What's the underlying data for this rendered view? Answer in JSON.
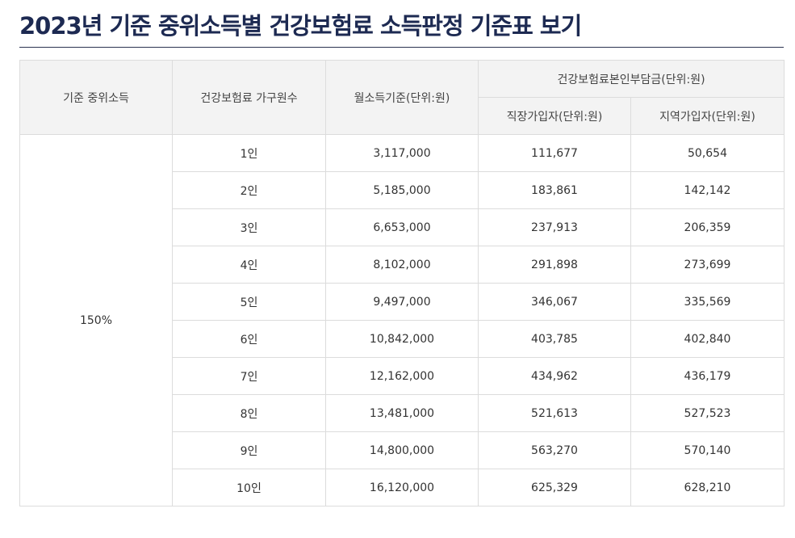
{
  "page": {
    "title": "2023년 기준 중위소득별 건강보험료 소득판정 기준표 보기"
  },
  "table": {
    "headers": {
      "median_income": "기준 중위소득",
      "household": "건강보험료 가구원수",
      "monthly_income": "월소득기준(단위:원)",
      "premium_group": "건강보험료본인부담금(단위:원)",
      "employee": "직장가입자(단위:원)",
      "regional": "지역가입자(단위:원)"
    },
    "ratio": "150%",
    "rows": [
      {
        "household": "1인",
        "monthly_income": "3,117,000",
        "employee": "111,677",
        "regional": "50,654"
      },
      {
        "household": "2인",
        "monthly_income": "5,185,000",
        "employee": "183,861",
        "regional": "142,142"
      },
      {
        "household": "3인",
        "monthly_income": "6,653,000",
        "employee": "237,913",
        "regional": "206,359"
      },
      {
        "household": "4인",
        "monthly_income": "8,102,000",
        "employee": "291,898",
        "regional": "273,699"
      },
      {
        "household": "5인",
        "monthly_income": "9,497,000",
        "employee": "346,067",
        "regional": "335,569"
      },
      {
        "household": "6인",
        "monthly_income": "10,842,000",
        "employee": "403,785",
        "regional": "402,840"
      },
      {
        "household": "7인",
        "monthly_income": "12,162,000",
        "employee": "434,962",
        "regional": "436,179"
      },
      {
        "household": "8인",
        "monthly_income": "13,481,000",
        "employee": "521,613",
        "regional": "527,523"
      },
      {
        "household": "9인",
        "monthly_income": "14,800,000",
        "employee": "563,270",
        "regional": "570,140"
      },
      {
        "household": "10인",
        "monthly_income": "16,120,000",
        "employee": "625,329",
        "regional": "628,210"
      }
    ]
  }
}
